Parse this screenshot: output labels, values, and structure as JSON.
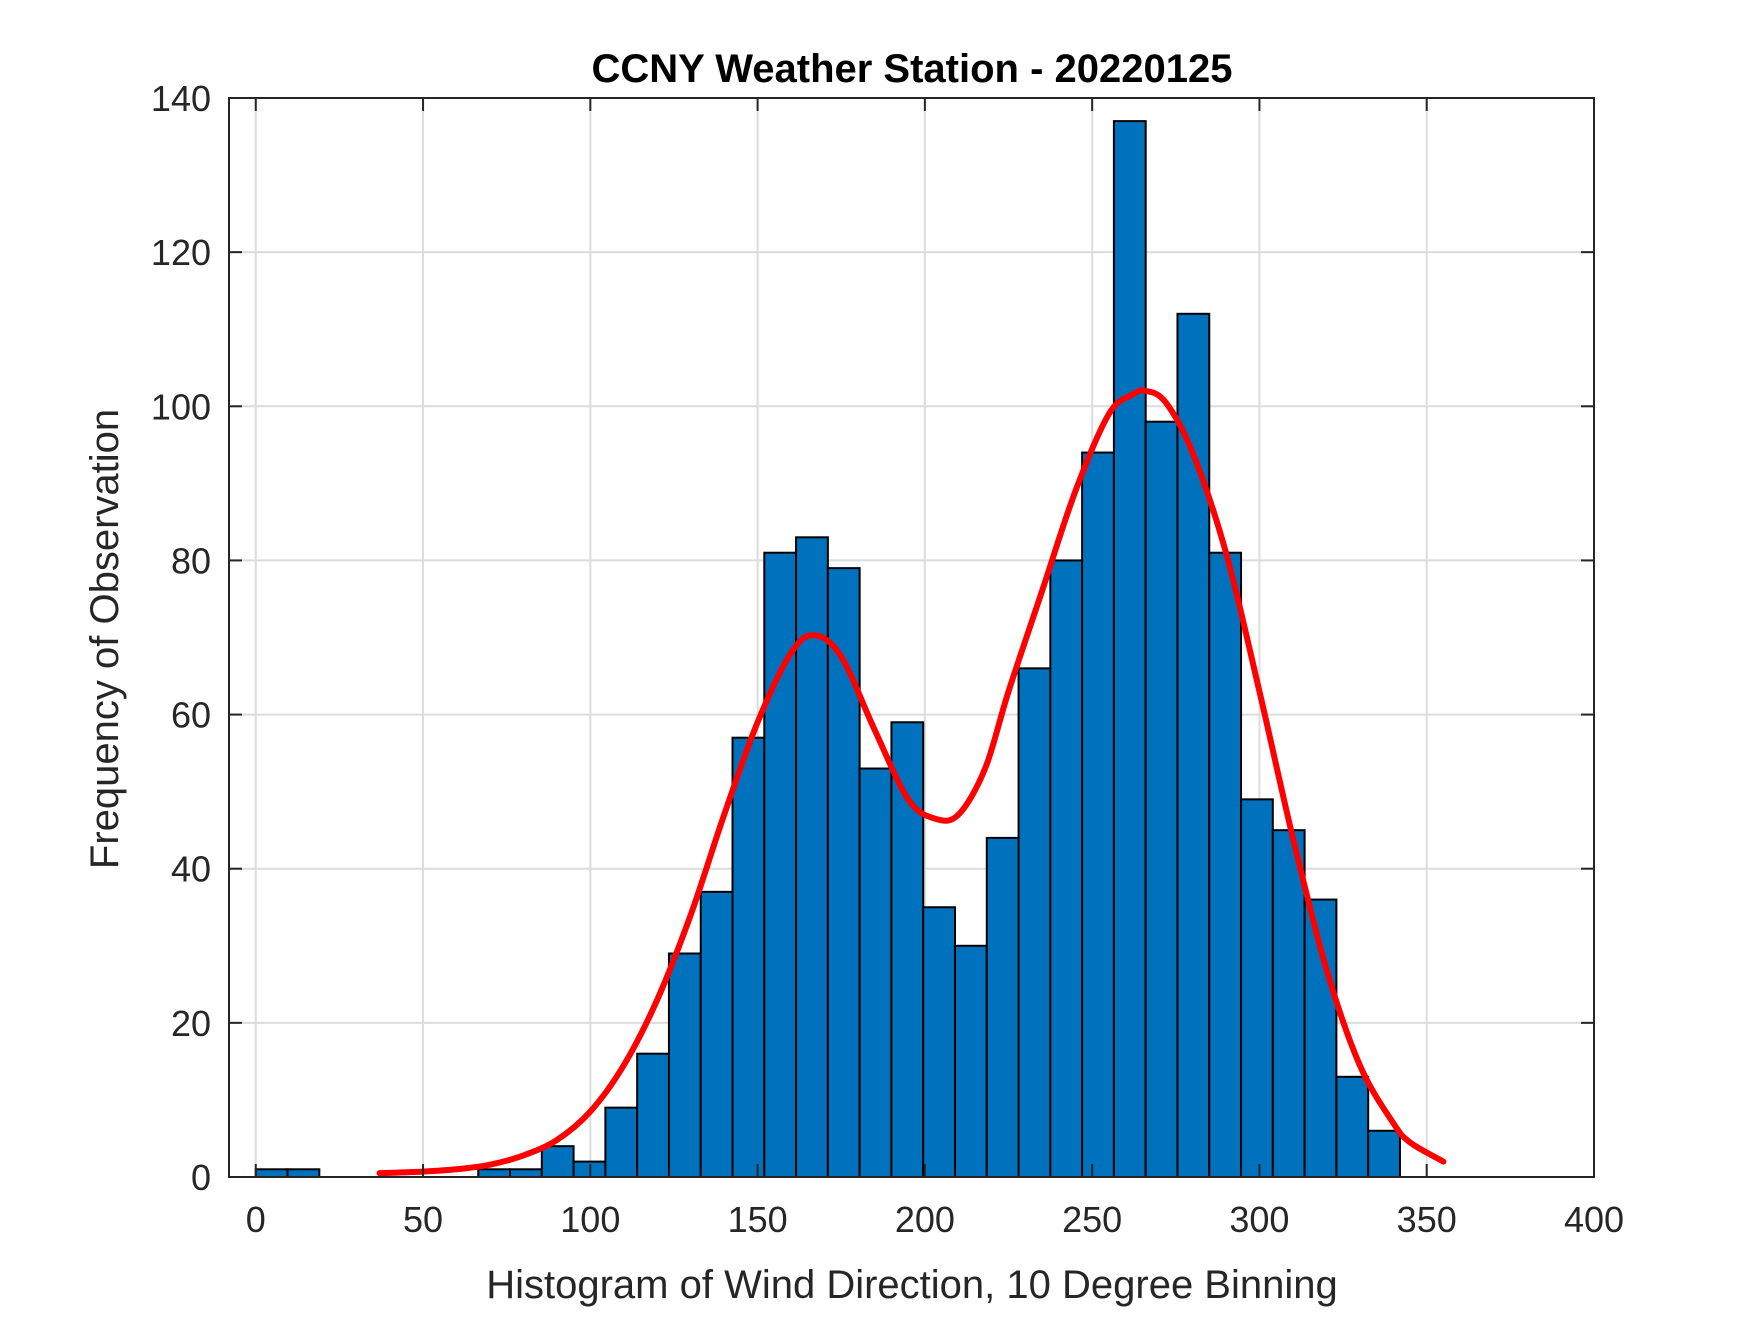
{
  "chart_data": {
    "type": "bar",
    "title": "CCNY Weather Station - 20220125",
    "xlabel": "Histogram of Wind Direction, 10 Degree Binning",
    "ylabel": "Frequency of Observation",
    "xlim": [
      -8,
      400
    ],
    "ylim": [
      0,
      140
    ],
    "xticks": [
      0,
      50,
      100,
      150,
      200,
      250,
      300,
      350,
      400
    ],
    "yticks": [
      0,
      20,
      40,
      60,
      80,
      100,
      120,
      140
    ],
    "grid": true,
    "bin_width": 9.5,
    "bins": [
      {
        "start": 0,
        "value": 1
      },
      {
        "start": 9.5,
        "value": 1
      },
      {
        "start": 19,
        "value": 0
      },
      {
        "start": 28.5,
        "value": 0
      },
      {
        "start": 38,
        "value": 0
      },
      {
        "start": 47.5,
        "value": 0
      },
      {
        "start": 57,
        "value": 0
      },
      {
        "start": 66.5,
        "value": 1
      },
      {
        "start": 76,
        "value": 1
      },
      {
        "start": 85.5,
        "value": 4
      },
      {
        "start": 95,
        "value": 2
      },
      {
        "start": 104.5,
        "value": 9
      },
      {
        "start": 114,
        "value": 16
      },
      {
        "start": 123.5,
        "value": 29
      },
      {
        "start": 133,
        "value": 37
      },
      {
        "start": 142.5,
        "value": 57
      },
      {
        "start": 152,
        "value": 81
      },
      {
        "start": 161.5,
        "value": 83
      },
      {
        "start": 171,
        "value": 79
      },
      {
        "start": 180.5,
        "value": 53
      },
      {
        "start": 190,
        "value": 59
      },
      {
        "start": 199.5,
        "value": 35
      },
      {
        "start": 209,
        "value": 30
      },
      {
        "start": 218.5,
        "value": 44
      },
      {
        "start": 228,
        "value": 66
      },
      {
        "start": 237.5,
        "value": 80
      },
      {
        "start": 247,
        "value": 94
      },
      {
        "start": 256.5,
        "value": 137
      },
      {
        "start": 266,
        "value": 98
      },
      {
        "start": 275.5,
        "value": 112
      },
      {
        "start": 285,
        "value": 81
      },
      {
        "start": 294.5,
        "value": 49
      },
      {
        "start": 304,
        "value": 45
      },
      {
        "start": 313.5,
        "value": 36
      },
      {
        "start": 323,
        "value": 13
      },
      {
        "start": 332.5,
        "value": 6
      }
    ],
    "fit_curve": {
      "x": [
        37,
        50,
        60,
        70,
        80,
        90,
        100,
        110,
        120,
        130,
        140,
        150,
        160,
        167,
        175,
        185,
        195,
        203,
        210,
        218,
        225,
        235,
        245,
        255,
        262,
        266,
        272,
        280,
        290,
        300,
        310,
        320,
        330,
        340,
        345,
        355
      ],
      "y": [
        0.5,
        0.7,
        1.0,
        1.6,
        2.8,
        4.8,
        8.5,
        14.5,
        23,
        34,
        47,
        59,
        68,
        70.3,
        67.5,
        58,
        49,
        46.5,
        47,
        53,
        63,
        76,
        89,
        99,
        101.5,
        102,
        100.5,
        94,
        81,
        63,
        44,
        27,
        14.5,
        7,
        4.5,
        2
      ]
    },
    "bar_color": "#0072BD",
    "bar_edge_color": "#000000",
    "curve_color": "#FF0000"
  }
}
